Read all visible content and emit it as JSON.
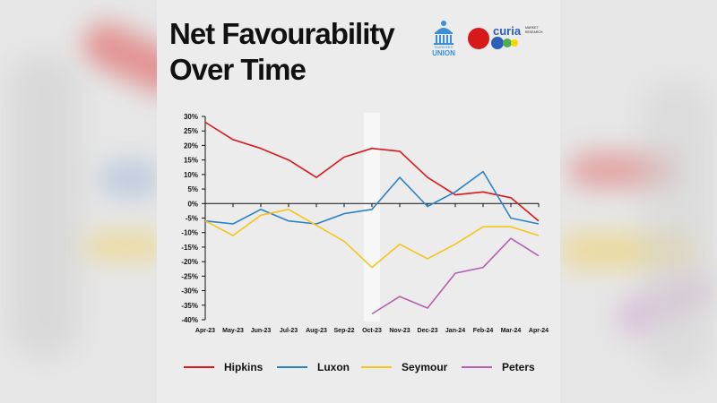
{
  "title_lines": [
    "Net Favourability",
    "Over Time"
  ],
  "logos": {
    "taxpayers_union": {
      "small": "TAXPAYERS'",
      "big": "UNION"
    },
    "curia": {
      "name": "curia",
      "small1": "MARKET",
      "small2": "RESEARCH"
    }
  },
  "colors": {
    "Hipkins": "#d7191c",
    "Luxon": "#2b83c6",
    "Seymour": "#f5c518",
    "Peters": "#b65fb0",
    "highlight": "#f7f7f7",
    "background": "#e6e6e6"
  },
  "chart_data": {
    "type": "line",
    "categories": [
      "Apr-23",
      "May-23",
      "Jun-23",
      "Jul-23",
      "Aug-23",
      "Sep-22",
      "Oct-23",
      "Nov-23",
      "Dec-23",
      "Jan-24",
      "Feb-24",
      "Mar-24",
      "Apr-24"
    ],
    "series": [
      {
        "name": "Hipkins",
        "values": [
          28,
          22,
          19,
          15,
          9,
          16,
          19,
          18,
          9,
          3,
          4,
          2,
          -6
        ]
      },
      {
        "name": "Luxon",
        "values": [
          -6,
          -7,
          -2,
          -6,
          -7,
          -3.5,
          -2,
          9,
          -1,
          4,
          11,
          -5,
          -7
        ]
      },
      {
        "name": "Seymour",
        "values": [
          -6,
          -11,
          -4,
          -2,
          -7.5,
          -13,
          -22,
          -14,
          -19,
          -14,
          -8,
          -8,
          -11
        ]
      },
      {
        "name": "Peters",
        "values": [
          null,
          null,
          null,
          null,
          null,
          null,
          -38,
          -32,
          -36,
          -24,
          -22,
          -12,
          -18
        ]
      }
    ],
    "ylim": [
      -40,
      30
    ],
    "yticks": [
      "30%",
      "25%",
      "20%",
      "15%",
      "10%",
      "5%",
      "0%",
      "-5%",
      "-10%",
      "-15%",
      "-20%",
      "-25%",
      "-30%",
      "-35%",
      "-40%"
    ],
    "highlight_category": "Oct-23",
    "legend_position": "bottom",
    "grid": false
  }
}
